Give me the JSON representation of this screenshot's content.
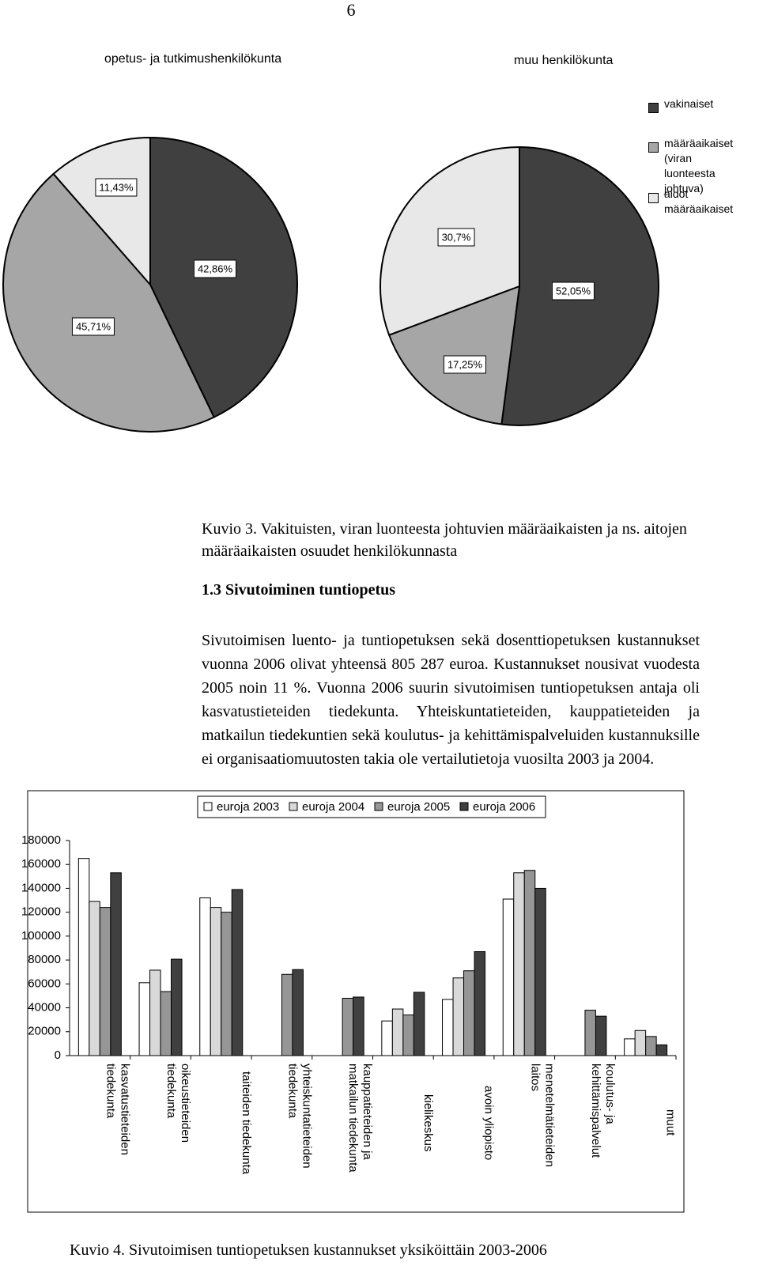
{
  "page_number": "6",
  "chart_data": [
    {
      "type": "pie",
      "title": "opetus- ja tutkimushenkilökunta",
      "values": [
        42.86,
        45.71,
        11.43
      ],
      "value_labels": [
        "42,86%",
        "45,71%",
        "11,43%"
      ],
      "colors": [
        "#404040",
        "#a6a6a6",
        "#e8e8e8"
      ]
    },
    {
      "type": "pie",
      "title": "muu henkilökunta",
      "labels": [
        "vakinaiset",
        "määräaikaiset (viran luonteesta johtuva)",
        "aidot määräaikaiset"
      ],
      "values": [
        52.05,
        17.25,
        30.7
      ],
      "value_labels": [
        "52,05%",
        "17,25%",
        "30,7%"
      ],
      "colors": [
        "#404040",
        "#a6a6a6",
        "#e8e8e8"
      ]
    },
    {
      "type": "bar",
      "categories": [
        "kasvatustieteiden tiedekunta",
        "oikeustieteiden tiedekunta",
        "taiteiden tiedekunta",
        "yhteiskuntatieteiden tiedekunta",
        "kauppatieteiden ja matkailun tiedekunta",
        "kielikeskus",
        "avoin yliopisto",
        "menetelmätieteiden laitos",
        "koulutus- ja kehittämispalvelut",
        "muut"
      ],
      "series": [
        {
          "name": "euroja 2003",
          "color": "#ffffff",
          "values": [
            165000,
            61000,
            132000,
            null,
            null,
            29000,
            47000,
            131000,
            null,
            14000
          ]
        },
        {
          "name": "euroja 2004",
          "color": "#d9d9d9",
          "values": [
            129000,
            71500,
            124000,
            null,
            null,
            39000,
            65000,
            153000,
            null,
            21000
          ]
        },
        {
          "name": "euroja 2005",
          "color": "#969696",
          "values": [
            124000,
            53600,
            120000,
            68000,
            48000,
            34000,
            71000,
            155000,
            38000,
            16000
          ]
        },
        {
          "name": "euroja 2006",
          "color": "#404040",
          "values": [
            153000,
            80700,
            139000,
            72000,
            49000,
            53000,
            87000,
            140000,
            33000,
            9000
          ]
        }
      ],
      "ylim": [
        0,
        180000
      ],
      "yticks": [
        0,
        20000,
        40000,
        60000,
        80000,
        100000,
        120000,
        140000,
        160000,
        180000
      ]
    }
  ],
  "figure3_caption": "Kuvio 3. Vakituisten, viran luonteesta johtuvien määräaikaisten ja ns. aitojen määräaikaisten osuudet henkilökunnasta",
  "section_heading": "1.3 Sivutoiminen tuntiopetus",
  "paragraph": "Sivutoimisen luento- ja tuntiopetuksen sekä dosenttiopetuksen kustannukset vuonna 2006 olivat yhteensä 805 287 euroa. Kustannukset nousivat vuodesta 2005 noin 11 %. Vuonna 2006 suurin sivutoimisen tuntiopetuksen antaja oli kasvatustieteiden tiedekunta. Yhteiskuntatieteiden, kauppatieteiden ja matkailun tiedekuntien sekä koulutus- ja kehittämispalveluiden kustannuksille ei organisaatiomuutosten takia ole vertailutietoja vuosilta 2003 ja 2004.",
  "figure4_caption": "Kuvio 4. Sivutoimisen tuntiopetuksen kustannukset yksiköittäin 2003-2006"
}
